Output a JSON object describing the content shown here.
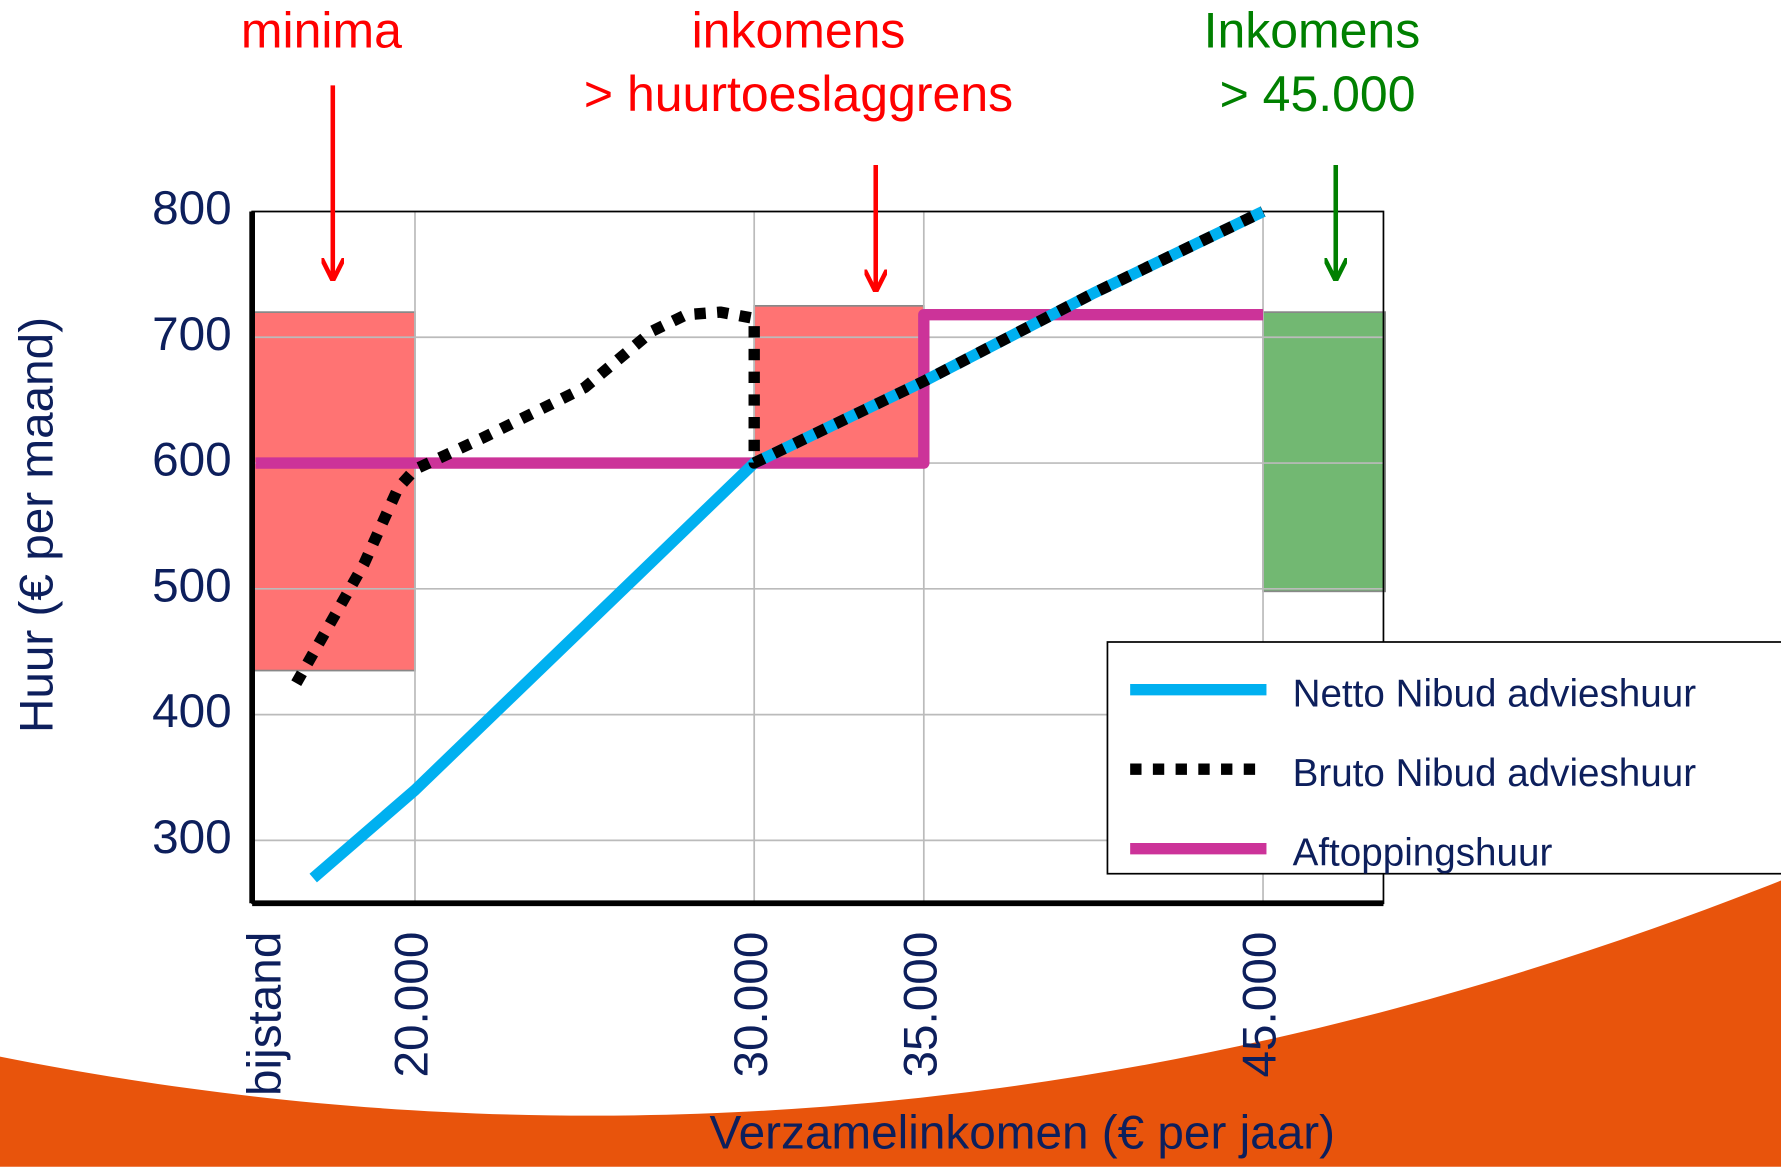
{
  "chart_data": {
    "type": "line",
    "ylabel": "Huur (€ per maand)",
    "xlabel": "Verzamelinkomen (€ per jaar)",
    "xlim": [
      15200,
      48550
    ],
    "ylim": [
      250,
      800
    ],
    "xticks": [
      {
        "value": 15200,
        "label": "bijstand"
      },
      {
        "value": 20000,
        "label": "20.000"
      },
      {
        "value": 30000,
        "label": "30.000"
      },
      {
        "value": 35000,
        "label": "35.000"
      },
      {
        "value": 45000,
        "label": "45.000"
      }
    ],
    "yticks": [
      300,
      400,
      500,
      600,
      700,
      800
    ],
    "grid": true,
    "legend": "lower right",
    "series": [
      {
        "name": "Netto Nibud advieshuur",
        "color": "#00b0f0",
        "style": "solid",
        "x": [
          17000,
          20000,
          25000,
          30000,
          35000,
          40000,
          45000
        ],
        "values": [
          270,
          340,
          470,
          600,
          665,
          735,
          800
        ]
      },
      {
        "name": "Bruto Nibud advieshuur",
        "color": "#000000",
        "style": "dotted",
        "x": [
          16500,
          18500,
          19500,
          20000,
          22000,
          25000,
          27000,
          28000,
          29000,
          30000,
          30000,
          35000,
          40000,
          45000
        ],
        "values": [
          425,
          520,
          580,
          595,
          620,
          660,
          705,
          718,
          720,
          715,
          600,
          665,
          735,
          800
        ]
      },
      {
        "name": "Aftoppingshuur",
        "color": "#cc3399",
        "style": "solid",
        "x": [
          15300,
          35000,
          35000,
          45000
        ],
        "values": [
          600,
          600,
          718,
          718
        ]
      }
    ],
    "bands": [
      {
        "x": [
          15200,
          20000
        ],
        "y": [
          435,
          720
        ],
        "color": "#ff7373"
      },
      {
        "x": [
          30000,
          35000
        ],
        "y": [
          600,
          725
        ],
        "color": "#ff7373"
      },
      {
        "x": [
          45000,
          48600
        ],
        "y": [
          498,
          720
        ],
        "color": "#72b872"
      }
    ],
    "annotations": [
      {
        "lines": [
          "minima"
        ],
        "color": "#ff0000"
      },
      {
        "lines": [
          "inkomens",
          "> huurtoeslaggrens"
        ],
        "color": "#ff0000"
      },
      {
        "lines": [
          "Inkomens",
          "> 45.000"
        ],
        "color": "#008000"
      }
    ]
  }
}
